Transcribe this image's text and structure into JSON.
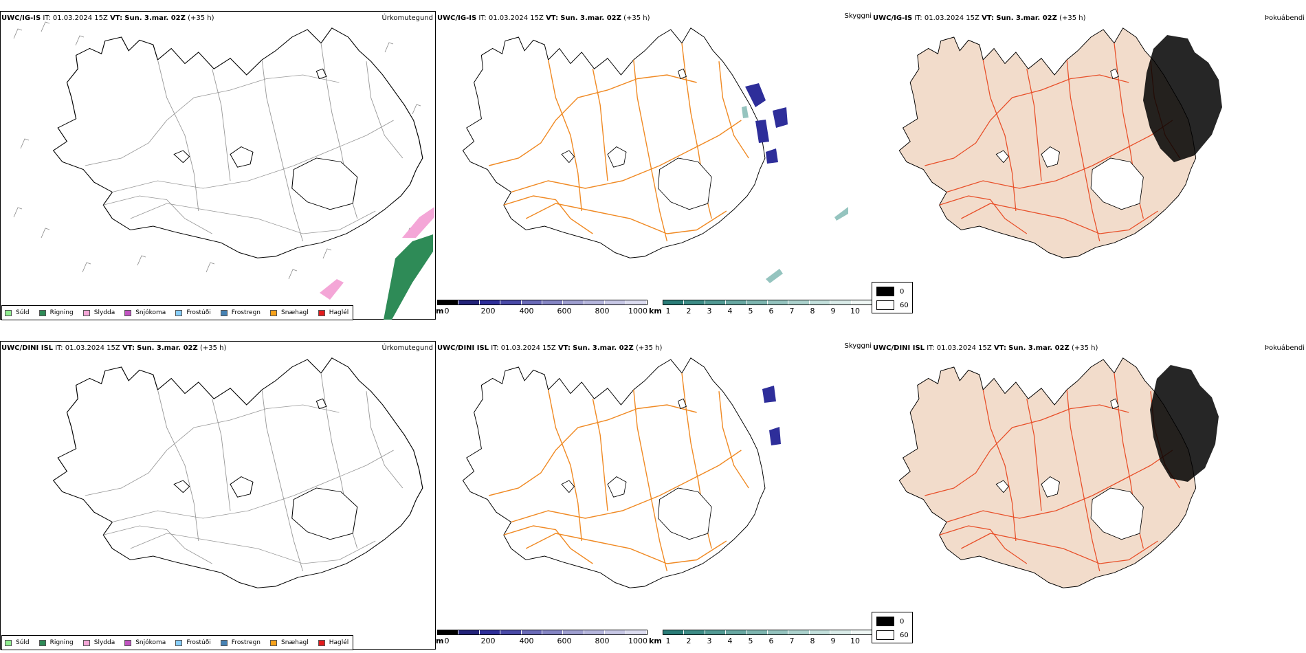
{
  "rows": [
    {
      "model": "UWC/IG-IS",
      "it_label": "IT:",
      "it_value": "01.03.2024 15Z",
      "vt_label": "VT:",
      "vt_value": "Sun. 3.mar. 02Z",
      "lead": "(+35 h)"
    },
    {
      "model": "UWC/DINI ISL",
      "it_label": "IT:",
      "it_value": "01.03.2024 15Z",
      "vt_label": "VT:",
      "vt_value": "Sun. 3.mar. 02Z",
      "lead": "(+35 h)"
    }
  ],
  "panels": {
    "precip": {
      "title": "Úrkomutegund"
    },
    "visibility": {
      "title": "Skyggni"
    },
    "fog": {
      "title": "Þokuábendi"
    }
  },
  "precip_legend": [
    {
      "label": "Súld",
      "color": "#90ee90"
    },
    {
      "label": "Rigning",
      "color": "#2e8b57"
    },
    {
      "label": "Slydda",
      "color": "#f4a6d7"
    },
    {
      "label": "Snjókoma",
      "color": "#c154c1"
    },
    {
      "label": "Frostúði",
      "color": "#87cefa"
    },
    {
      "label": "Frostregn",
      "color": "#4682b4"
    },
    {
      "label": "Snæhagl",
      "color": "#f7a21b"
    },
    {
      "label": "Haglél",
      "color": "#e31a1c"
    }
  ],
  "height_bar": {
    "unit": "m",
    "ticks": [
      "0",
      "200",
      "400",
      "600",
      "800",
      "1000"
    ],
    "colors": [
      "#000000",
      "#23237a",
      "#2e2e9a",
      "#4a4aa8",
      "#6a6ab8",
      "#8585c4",
      "#9f9fd0",
      "#b5b5dc",
      "#c8c8e6",
      "#dcdcf0"
    ]
  },
  "visibility_bar": {
    "unit": "km",
    "ticks": [
      "1",
      "2",
      "3",
      "4",
      "5",
      "6",
      "7",
      "8",
      "9",
      "10"
    ],
    "colors": [
      "#2a7d78",
      "#3d8c86",
      "#529a94",
      "#68a8a2",
      "#7eb6b0",
      "#95c4bf",
      "#acd2cd",
      "#c3e0dc",
      "#daece9",
      "#f0f8f6"
    ]
  },
  "fog_legend": [
    {
      "label": "0",
      "color": "#000000"
    },
    {
      "label": "60",
      "color": "#ffffff"
    }
  ]
}
